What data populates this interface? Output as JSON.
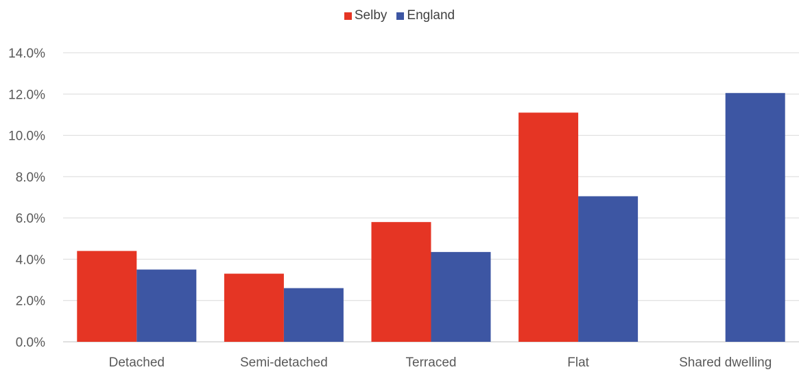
{
  "chart_data": {
    "type": "bar",
    "title": "",
    "xlabel": "",
    "ylabel": "",
    "categories": [
      "Detached",
      "Semi-detached",
      "Terraced",
      "Flat",
      "Shared dwelling"
    ],
    "series": [
      {
        "name": "Selby",
        "color": "#e53524",
        "values": [
          4.4,
          3.3,
          5.8,
          11.1,
          null
        ]
      },
      {
        "name": "England",
        "color": "#3d56a3",
        "values": [
          3.5,
          2.6,
          4.35,
          7.05,
          12.05
        ]
      }
    ],
    "ylim": [
      0,
      14
    ],
    "yticks": [
      "0.0%",
      "2.0%",
      "4.0%",
      "6.0%",
      "8.0%",
      "10.0%",
      "12.0%",
      "14.0%"
    ],
    "grid": true,
    "legend_position": "top-center"
  }
}
